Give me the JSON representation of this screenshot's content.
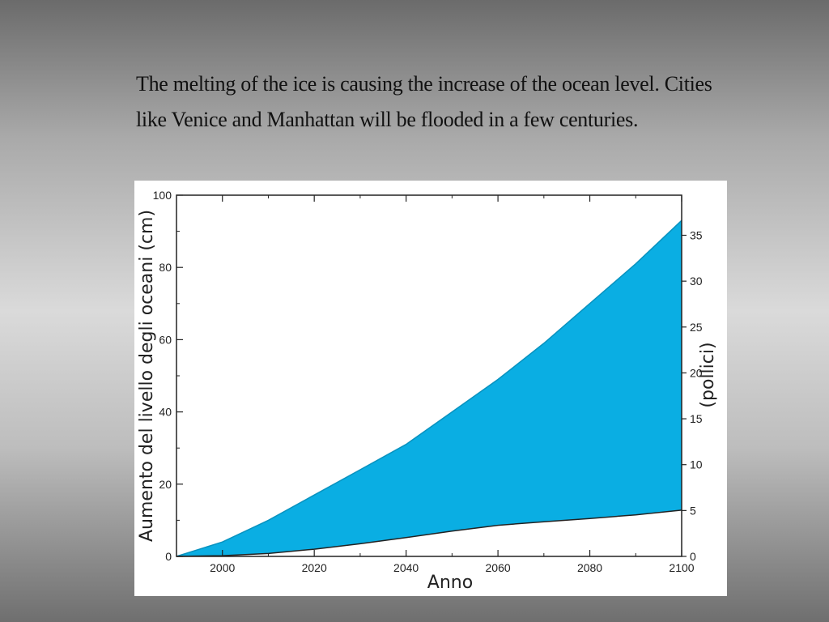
{
  "slide": {
    "caption_line1": "The melting of the ice is causing the increase of the ocean level. Cities",
    "caption_line2": "like Venice and Manhattan will be flooded in a few centuries."
  },
  "chart_data": {
    "type": "area",
    "title": "",
    "xlabel": "Anno",
    "ylabel": "Aumento del livello degli oceani (cm)",
    "y2label": "(pollici)",
    "xlim": [
      1990,
      2100
    ],
    "ylim": [
      0,
      100
    ],
    "y2lim": [
      0,
      39.37
    ],
    "x_ticks": [
      2000,
      2020,
      2040,
      2060,
      2080,
      2100
    ],
    "x_tick_labels": [
      "2000",
      "2020",
      "2040",
      "2060",
      "2080",
      "2100"
    ],
    "y_ticks": [
      0,
      20,
      40,
      60,
      80,
      100
    ],
    "y_tick_labels": [
      "0",
      "20",
      "40",
      "60",
      "80",
      "100"
    ],
    "y2_ticks": [
      0,
      5,
      10,
      15,
      20,
      25,
      30,
      35
    ],
    "y2_tick_labels": [
      "0",
      "5",
      "10",
      "15",
      "20",
      "25",
      "30",
      "35"
    ],
    "grid": false,
    "fill_color": "#0aaee3",
    "series": [
      {
        "x": [
          1990,
          2000,
          2010,
          2020,
          2030,
          2040,
          2050,
          2060,
          2070,
          2080,
          2090,
          2100
        ],
        "upper": [
          0,
          4,
          10,
          17,
          24,
          31,
          40,
          49,
          59,
          70,
          81,
          93
        ],
        "lower": [
          0,
          0.2,
          0.8,
          2,
          3.5,
          5.2,
          7,
          8.6,
          9.6,
          10.5,
          11.5,
          12.8
        ]
      }
    ]
  }
}
